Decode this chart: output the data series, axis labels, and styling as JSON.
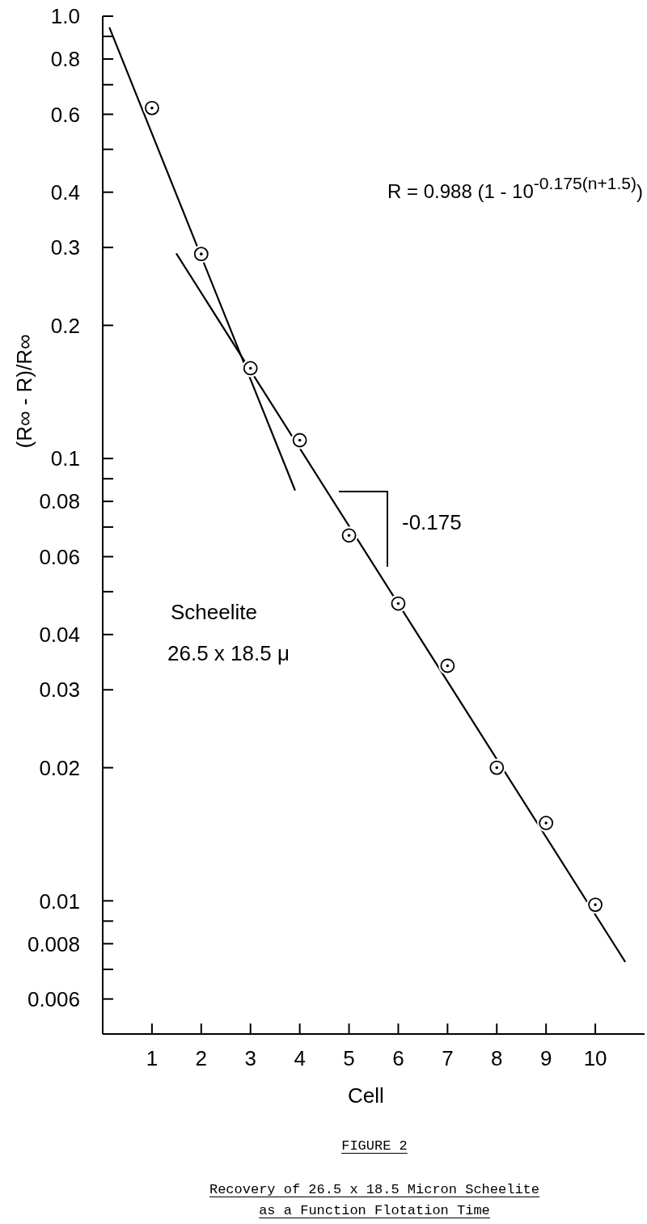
{
  "chart_data": {
    "type": "scatter",
    "title": "FIGURE 2",
    "subtitle": "Recovery of 26.5 x 18.5 Micron Scheelite as a Function Flotation Time",
    "xlabel": "Cell",
    "ylabel": "(R∞ - R)/R∞",
    "annotations": [
      "R = 0.988 (1 - 10$^{-0.175(n+1.5)}$)",
      "Scheelite",
      "26.5 x 18.5 μ",
      "-0.175"
    ],
    "series": [
      {
        "type": "scatter",
        "color": "#000000",
        "marker": "circle",
        "x": [
          1,
          2,
          3,
          4,
          5,
          6,
          7,
          8,
          9,
          10
        ],
        "values": [
          0.62,
          0.29,
          0.16,
          0.11,
          0.067,
          0.047,
          0.034,
          0.02,
          0.015,
          0.0098
        ]
      },
      {
        "type": "line",
        "color": "#000000",
        "x": [
          0.14,
          3.9
        ],
        "values": [
          0.94,
          0.085
        ]
      },
      {
        "type": "line",
        "color": "#000000",
        "x": [
          1.5,
          10.6
        ],
        "values": [
          0.29,
          0.0073
        ]
      }
    ],
    "xlim": [
      0,
      11
    ],
    "xticks": [
      1,
      2,
      3,
      4,
      5,
      6,
      7,
      8,
      9,
      10
    ],
    "ylim": [
      0.005,
      1
    ],
    "yticks": [
      0.006,
      {
        "value": 0.007,
        "label": null
      },
      0.008,
      {
        "value": 0.009,
        "label": null
      },
      0.01,
      0.02,
      0.03,
      0.04,
      {
        "value": 0.05,
        "label": null
      },
      0.06,
      {
        "value": 0.07,
        "label": null
      },
      0.08,
      {
        "value": 0.09,
        "label": null
      },
      0.1,
      0.2,
      0.3,
      0.4,
      {
        "value": 0.5,
        "label": null
      },
      0.6,
      {
        "value": 0.7,
        "label": null
      },
      0.8,
      {
        "value": 0.9,
        "label": null
      },
      {
        "value": 1,
        "label": "1.0"
      }
    ],
    "log": "y"
  }
}
